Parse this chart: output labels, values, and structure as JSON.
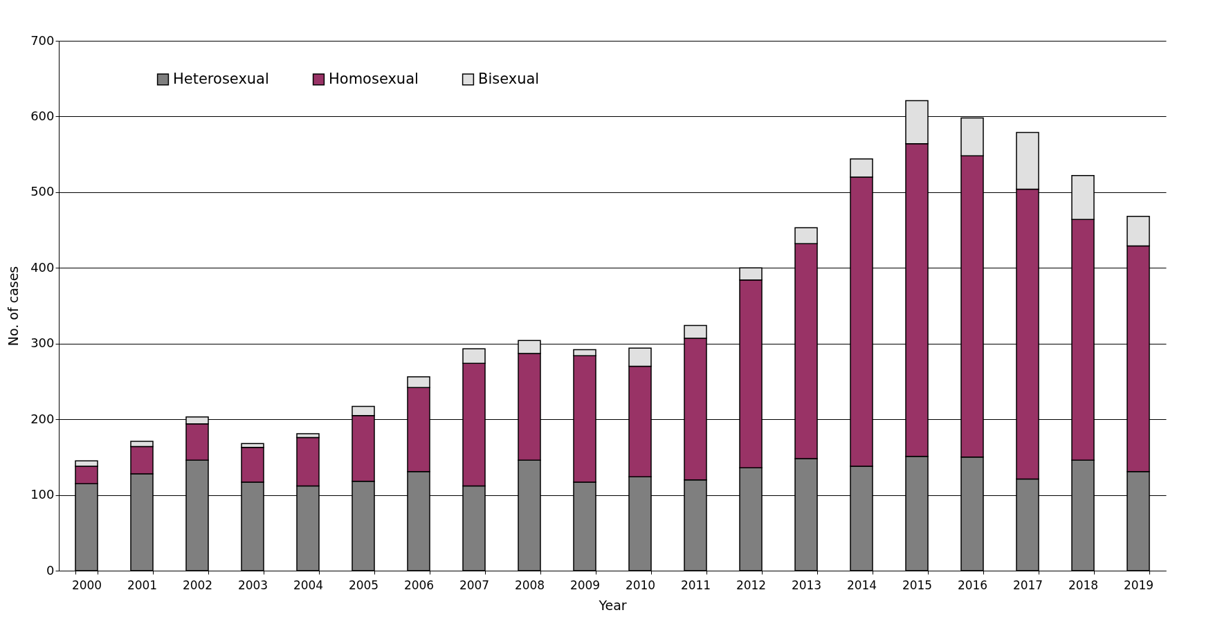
{
  "chart_data": {
    "type": "bar",
    "xlabel": "Year",
    "ylabel": "No. of cases",
    "categories": [
      "2000",
      "2001",
      "2002",
      "2003",
      "2004",
      "2005",
      "2006",
      "2007",
      "2008",
      "2009",
      "2010",
      "2011",
      "2012",
      "2013",
      "2014",
      "2015",
      "2016",
      "2017",
      "2018",
      "2019"
    ],
    "series": [
      {
        "name": "Heterosexual",
        "color": "#7f7f7f",
        "values": [
          115,
          128,
          146,
          117,
          112,
          118,
          131,
          112,
          146,
          117,
          124,
          120,
          136,
          148,
          138,
          151,
          150,
          121,
          146,
          131
        ]
      },
      {
        "name": "Homosexual",
        "color": "#993366",
        "values": [
          23,
          36,
          48,
          46,
          64,
          87,
          111,
          162,
          141,
          167,
          146,
          187,
          248,
          284,
          382,
          413,
          398,
          383,
          318,
          298
        ]
      },
      {
        "name": "Bisexual",
        "color": "#e0e0e0",
        "values": [
          7,
          7,
          9,
          5,
          5,
          12,
          14,
          19,
          17,
          8,
          24,
          17,
          16,
          21,
          24,
          57,
          50,
          75,
          58,
          39
        ]
      }
    ],
    "stacked": true,
    "ylim": [
      0,
      700
    ],
    "yticks": [
      0,
      100,
      200,
      300,
      400,
      500,
      600,
      700
    ],
    "grid": "y",
    "legend": "top left"
  }
}
